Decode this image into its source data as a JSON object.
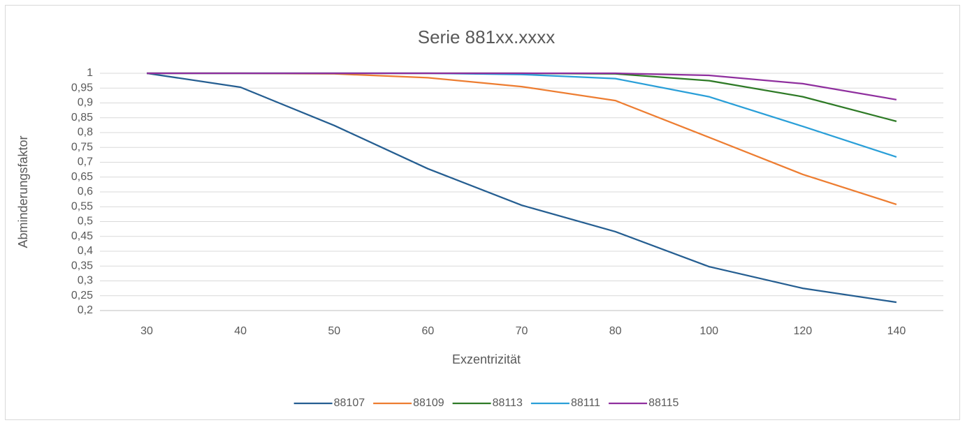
{
  "chart_data": {
    "type": "line",
    "title": "Serie 881xx.xxxx",
    "x_label": "Exzentrizität",
    "y_label": "Abminderungsfaktor",
    "categories": [
      "30",
      "40",
      "50",
      "60",
      "70",
      "80",
      "100",
      "120",
      "140"
    ],
    "series": [
      {
        "name": "88107",
        "color": "#255e91",
        "values": [
          1,
          0.953,
          0.824,
          0.678,
          0.555,
          0.466,
          0.348,
          0.275,
          0.228
        ]
      },
      {
        "name": "88109",
        "color": "#ed7d31",
        "values": [
          1,
          1,
          0.998,
          0.985,
          0.955,
          0.908,
          0.784,
          0.659,
          0.558
        ]
      },
      {
        "name": "88113",
        "color": "#2e7a26",
        "values": [
          1,
          1,
          1,
          1,
          1,
          0.998,
          0.975,
          0.921,
          0.838
        ]
      },
      {
        "name": "88111",
        "color": "#2a9fd8",
        "values": [
          1,
          1,
          1,
          1,
          0.996,
          0.982,
          0.921,
          0.821,
          0.718
        ]
      },
      {
        "name": "88115",
        "color": "#8f2f9e",
        "values": [
          1,
          1,
          1,
          1,
          1,
          1,
          0.993,
          0.965,
          0.911
        ]
      }
    ],
    "ylim": [
      0.2,
      1
    ],
    "yticks": [
      {
        "value": 0.2,
        "label": "0,2"
      },
      {
        "value": 0.25,
        "label": "0,25"
      },
      {
        "value": 0.3,
        "label": "0,3"
      },
      {
        "value": 0.35,
        "label": "0,35"
      },
      {
        "value": 0.4,
        "label": "0,4"
      },
      {
        "value": 0.45,
        "label": "0,45"
      },
      {
        "value": 0.5,
        "label": "0,5"
      },
      {
        "value": 0.55,
        "label": "0,55"
      },
      {
        "value": 0.6,
        "label": "0,6"
      },
      {
        "value": 0.65,
        "label": "0,65"
      },
      {
        "value": 0.7,
        "label": "0,7"
      },
      {
        "value": 0.75,
        "label": "0,75"
      },
      {
        "value": 0.8,
        "label": "0,8"
      },
      {
        "value": 0.85,
        "label": "0,85"
      },
      {
        "value": 0.9,
        "label": "0,9"
      },
      {
        "value": 0.95,
        "label": "0,95"
      },
      1
    ],
    "grid": true,
    "legend": "bottom"
  }
}
